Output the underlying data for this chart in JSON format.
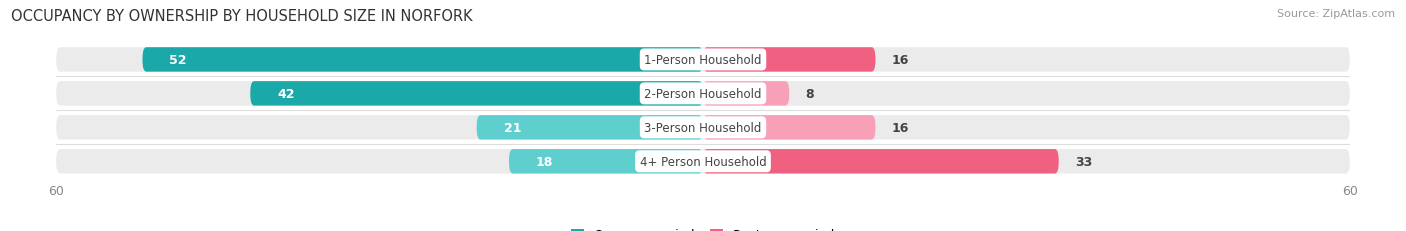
{
  "title": "OCCUPANCY BY OWNERSHIP BY HOUSEHOLD SIZE IN NORFORK",
  "source": "Source: ZipAtlas.com",
  "categories": [
    "1-Person Household",
    "2-Person Household",
    "3-Person Household",
    "4+ Person Household"
  ],
  "owner_values": [
    52,
    42,
    21,
    18
  ],
  "renter_values": [
    16,
    8,
    16,
    33
  ],
  "axis_max": 60,
  "owner_color_dark": "#1aa8a8",
  "owner_color_light": "#5ecece",
  "renter_color_dark": "#f06080",
  "renter_color_light": "#f8a0b8",
  "bar_bg_color": "#ebebeb",
  "bar_height": 0.72,
  "bar_gap": 0.06,
  "title_fontsize": 10.5,
  "label_fontsize": 9,
  "cat_fontsize": 8.5,
  "tick_fontsize": 9,
  "legend_fontsize": 9,
  "source_fontsize": 8,
  "background_color": "#ffffff",
  "axis_label_color": "#888888",
  "text_color_white": "#ffffff",
  "text_color_dark": "#444444"
}
